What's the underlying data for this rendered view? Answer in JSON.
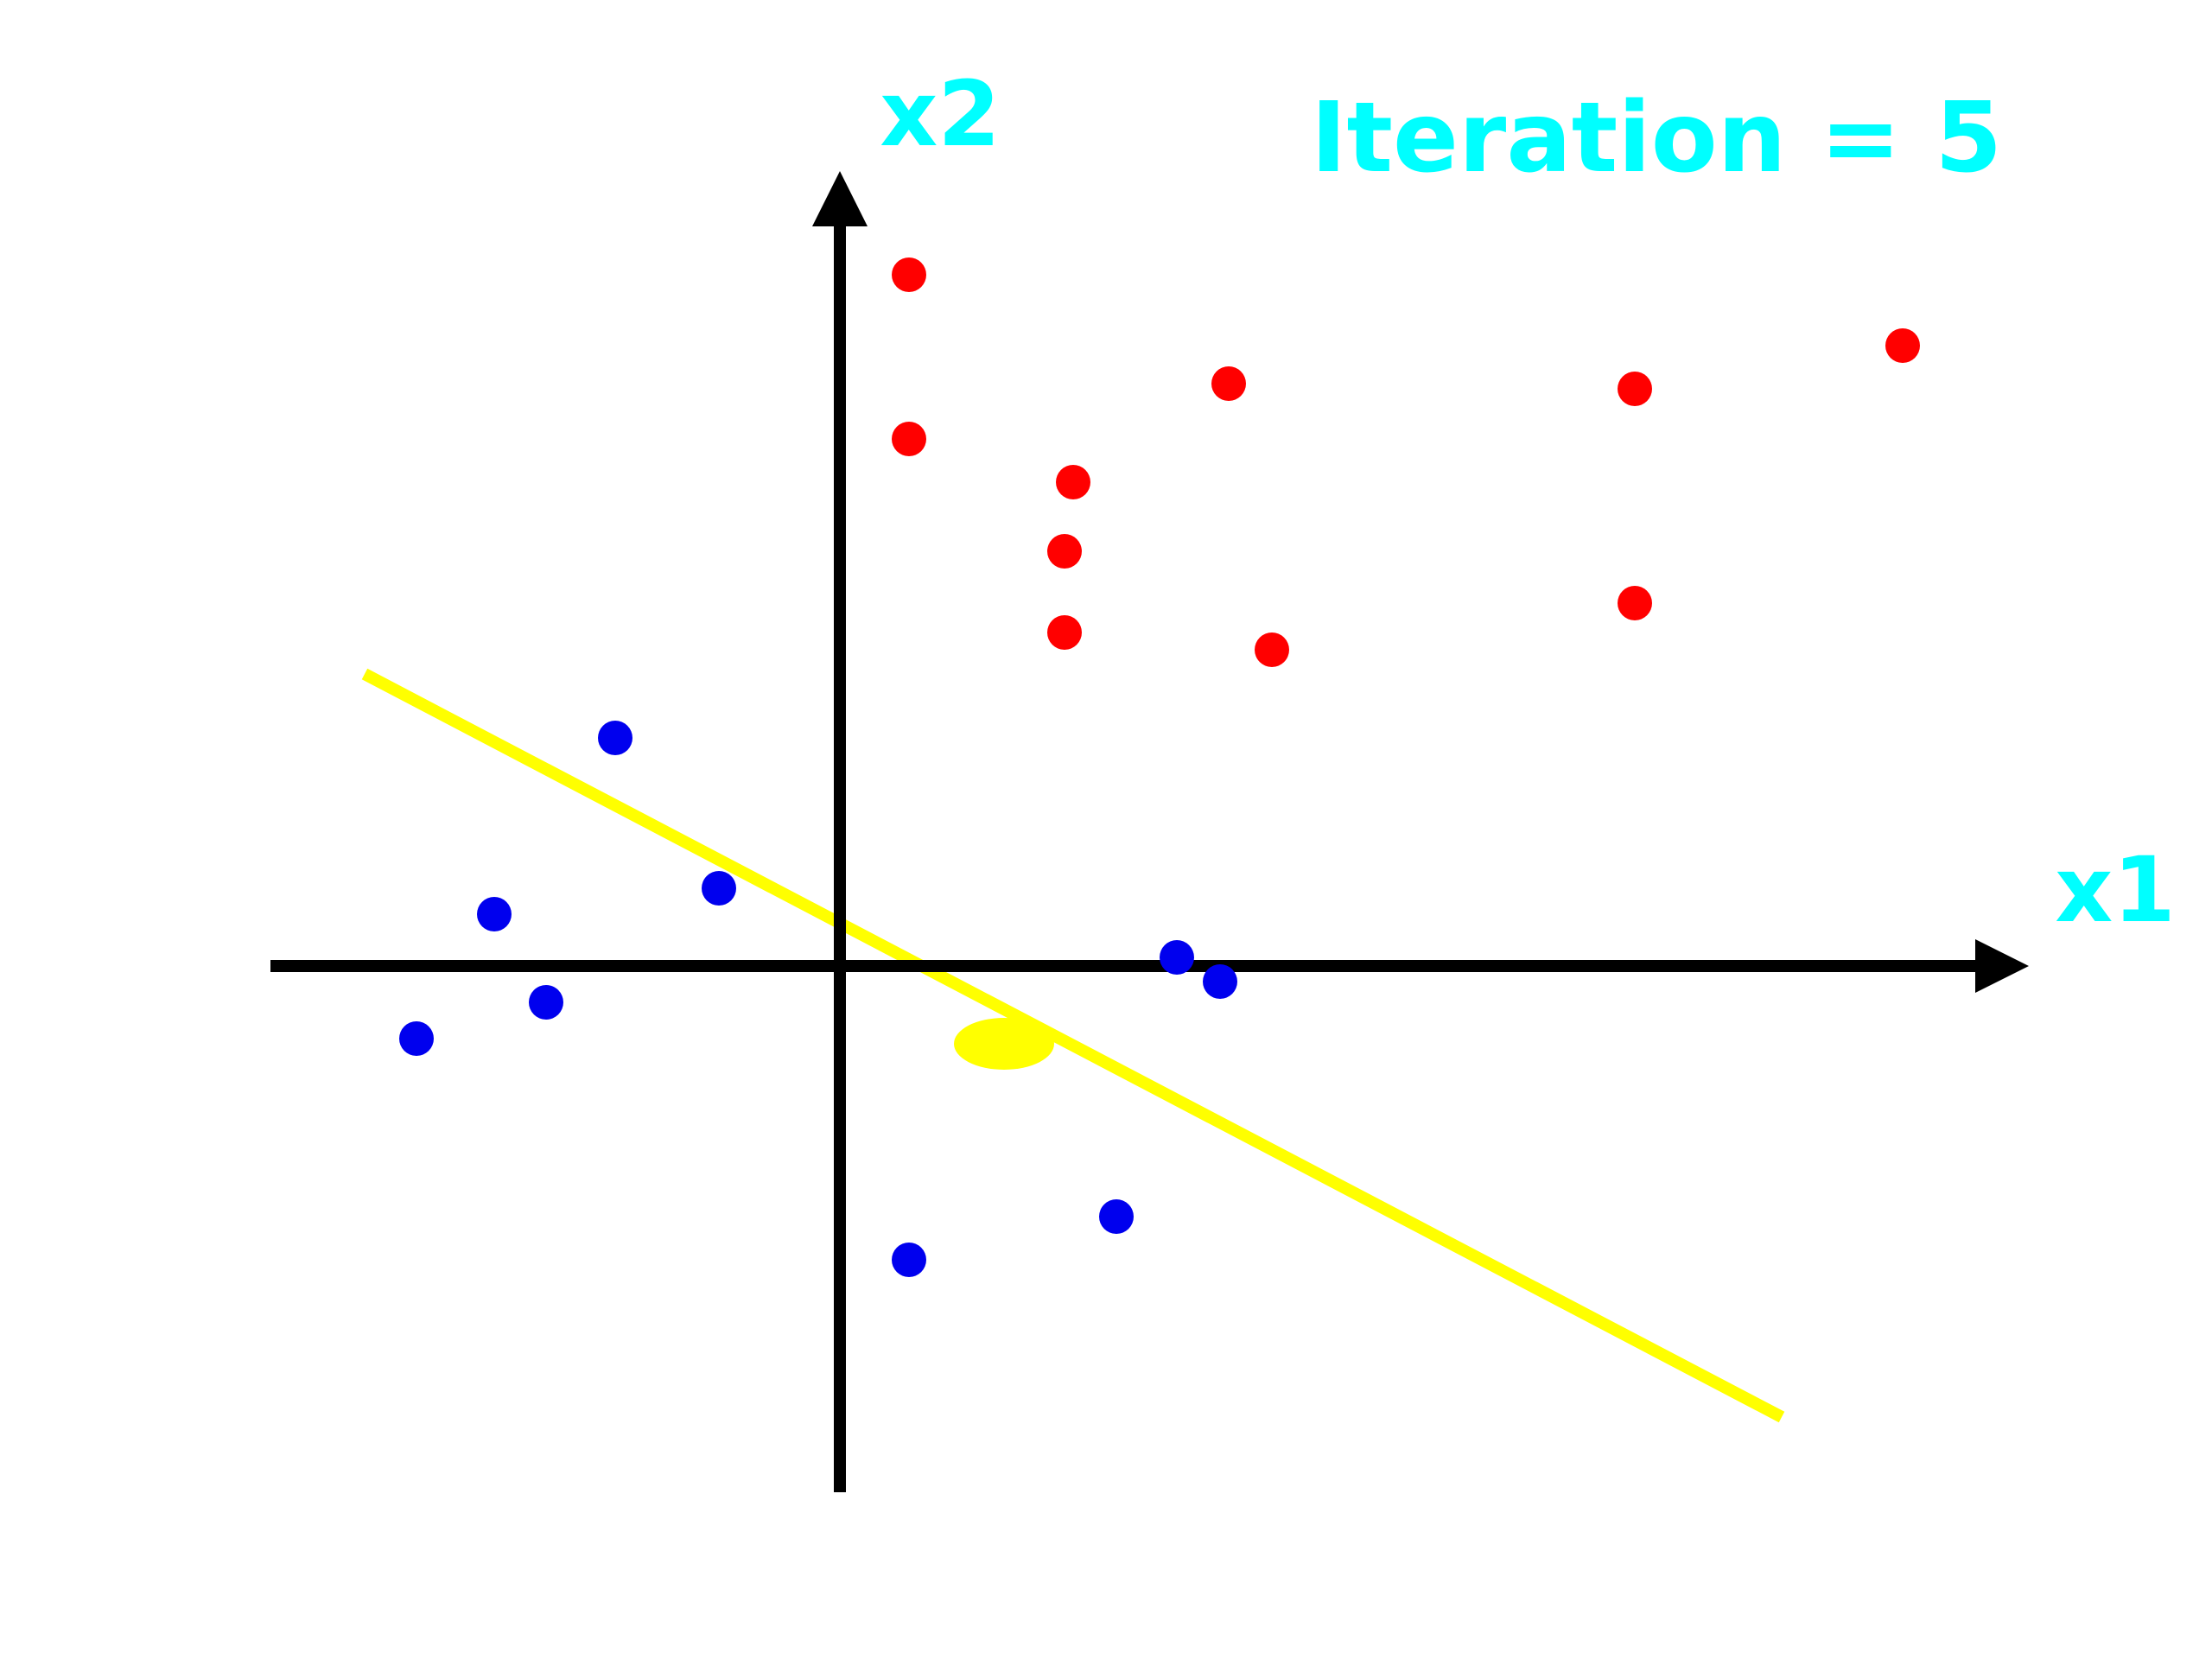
{
  "title": "Iteration = 5",
  "x_axis_label": "x1",
  "y_axis_label": "x2",
  "colors": {
    "class_red": "#ff0000",
    "class_blue": "#0000ee",
    "decision_line": "#ffff00",
    "axis": "#000000",
    "label": "#00ffff"
  },
  "chart_data": {
    "type": "scatter",
    "xlim": [
      -3.3,
      6.6
    ],
    "ylim": [
      -3.0,
      4.5
    ],
    "grid": false,
    "series": [
      {
        "points": [
          [
            0.4,
            4.0
          ],
          [
            0.4,
            3.05
          ],
          [
            1.35,
            2.8
          ],
          [
            1.3,
            2.4
          ],
          [
            1.3,
            1.93
          ],
          [
            2.25,
            3.37
          ],
          [
            2.5,
            1.83
          ],
          [
            4.6,
            3.34
          ],
          [
            6.15,
            3.59
          ],
          [
            4.6,
            2.1
          ]
        ]
      },
      {
        "points": [
          [
            -1.3,
            1.32
          ],
          [
            -2.0,
            0.3
          ],
          [
            -0.7,
            0.45
          ],
          [
            -2.45,
            -0.42
          ],
          [
            -1.7,
            -0.21
          ],
          [
            1.95,
            0.05
          ],
          [
            2.2,
            -0.09
          ],
          [
            0.4,
            -1.7
          ],
          [
            1.6,
            -1.45
          ]
        ]
      }
    ],
    "decision_boundary": {
      "x": [
        -2.75,
        5.45
      ],
      "y": [
        1.69,
        -2.61
      ]
    },
    "normal_marker": {
      "x": 0.95,
      "y": -0.45
    }
  }
}
